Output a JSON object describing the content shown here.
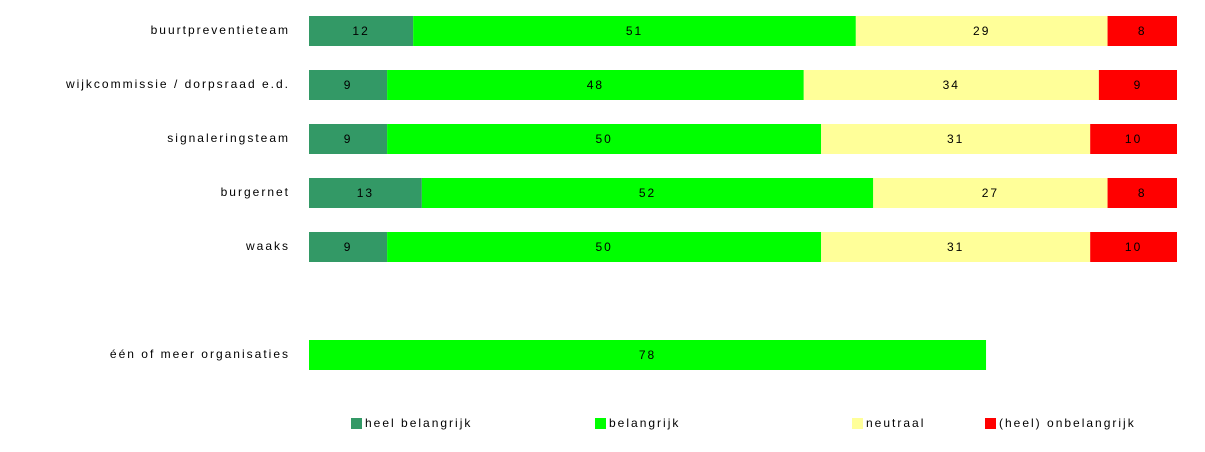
{
  "chart_data": {
    "type": "stacked_barh",
    "categories": [
      "buurtpreventieteam",
      "wijkcommissie / dorpsraad e.d.",
      "signaleringsteam",
      "burgernet",
      "waaks",
      null,
      "één of meer organisaties"
    ],
    "series": [
      {
        "name": "heel belangrijk",
        "color": "#339966",
        "values": [
          12,
          9,
          9,
          13,
          9,
          null,
          null
        ]
      },
      {
        "name": "belangrijk",
        "color": "#00ff00",
        "values": [
          51,
          48,
          50,
          52,
          50,
          null,
          78
        ]
      },
      {
        "name": "neutraal",
        "color": "#ffff99",
        "values": [
          29,
          34,
          31,
          27,
          31,
          null,
          null
        ]
      },
      {
        "name": "(heel) onbelangrijk",
        "color": "#ff0000",
        "values": [
          8,
          9,
          10,
          8,
          10,
          null,
          null
        ]
      }
    ],
    "xlim": [
      0,
      100
    ],
    "legend": "bottom"
  }
}
